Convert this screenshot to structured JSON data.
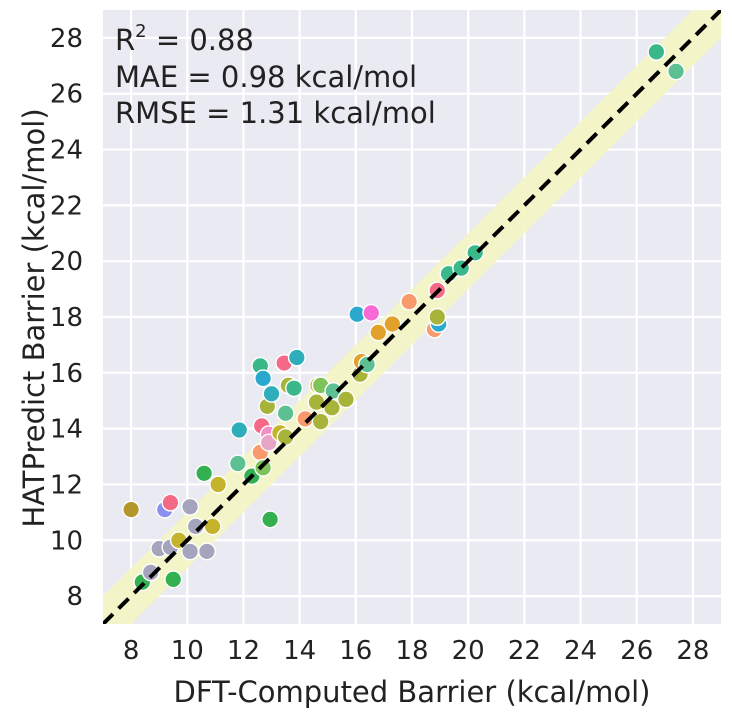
{
  "chart_data": {
    "type": "scatter",
    "xlabel": "DFT-Computed Barrier (kcal/mol)",
    "ylabel": "HATPredict Barrier (kcal/mol)",
    "xlim": [
      7,
      29
    ],
    "ylim": [
      7,
      29
    ],
    "x_ticks": [
      8,
      10,
      12,
      14,
      16,
      18,
      20,
      22,
      24,
      26,
      28
    ],
    "y_ticks": [
      8,
      10,
      12,
      14,
      16,
      18,
      20,
      22,
      24,
      26,
      28
    ],
    "grid": true,
    "background_color": "#eaeaf2",
    "parity_line": true,
    "error_band": 1,
    "band_color": "#f4f5c2",
    "stats": {
      "r2_label": "R",
      "r2_sup": "2",
      "r2_value": " = 0.88",
      "mae": "MAE = 0.98 kcal/mol",
      "rmse": "RMSE = 1.31 kcal/mol"
    },
    "points": [
      {
        "x": 8.0,
        "y": 11.1,
        "color": "#b5962c"
      },
      {
        "x": 8.4,
        "y": 8.5,
        "color": "#33b04f"
      },
      {
        "x": 8.7,
        "y": 8.85,
        "color": "#a4a4bc"
      },
      {
        "x": 9.0,
        "y": 9.7,
        "color": "#a4a4bc"
      },
      {
        "x": 9.2,
        "y": 11.1,
        "color": "#8b8ff0"
      },
      {
        "x": 9.4,
        "y": 11.35,
        "color": "#f46a86"
      },
      {
        "x": 9.4,
        "y": 9.75,
        "color": "#a4a4bc"
      },
      {
        "x": 9.5,
        "y": 8.6,
        "color": "#33b04f"
      },
      {
        "x": 9.7,
        "y": 10.0,
        "color": "#c4b42c"
      },
      {
        "x": 10.1,
        "y": 11.2,
        "color": "#a4a4bc"
      },
      {
        "x": 10.1,
        "y": 9.6,
        "color": "#a4a4bc"
      },
      {
        "x": 10.3,
        "y": 10.5,
        "color": "#a4a4bc"
      },
      {
        "x": 10.6,
        "y": 12.4,
        "color": "#33b04f"
      },
      {
        "x": 10.7,
        "y": 9.6,
        "color": "#a4a4bc"
      },
      {
        "x": 10.9,
        "y": 10.5,
        "color": "#c4b42c"
      },
      {
        "x": 11.1,
        "y": 12.0,
        "color": "#c4b42c"
      },
      {
        "x": 11.8,
        "y": 12.75,
        "color": "#5cc092"
      },
      {
        "x": 11.85,
        "y": 13.95,
        "color": "#2fadbb"
      },
      {
        "x": 12.3,
        "y": 12.3,
        "color": "#33b04f"
      },
      {
        "x": 12.6,
        "y": 16.25,
        "color": "#3bb88a"
      },
      {
        "x": 12.6,
        "y": 13.15,
        "color": "#f89a6c"
      },
      {
        "x": 12.65,
        "y": 14.1,
        "color": "#f46a86"
      },
      {
        "x": 12.7,
        "y": 15.8,
        "color": "#2aa9cf"
      },
      {
        "x": 12.7,
        "y": 12.6,
        "color": "#7ec35a"
      },
      {
        "x": 12.85,
        "y": 14.8,
        "color": "#a8b33a"
      },
      {
        "x": 12.9,
        "y": 13.8,
        "color": "#f38fc7"
      },
      {
        "x": 12.9,
        "y": 13.5,
        "color": "#e7a4c6"
      },
      {
        "x": 12.95,
        "y": 10.75,
        "color": "#33b04f"
      },
      {
        "x": 13.0,
        "y": 15.25,
        "color": "#2fadbb"
      },
      {
        "x": 13.3,
        "y": 13.85,
        "color": "#c4b42c"
      },
      {
        "x": 13.45,
        "y": 16.35,
        "color": "#f46a86"
      },
      {
        "x": 13.5,
        "y": 14.55,
        "color": "#5cc092"
      },
      {
        "x": 13.5,
        "y": 13.7,
        "color": "#a8b33a"
      },
      {
        "x": 13.6,
        "y": 15.55,
        "color": "#a8b33a"
      },
      {
        "x": 13.8,
        "y": 15.45,
        "color": "#3bb88a"
      },
      {
        "x": 13.9,
        "y": 16.55,
        "color": "#2fadbb"
      },
      {
        "x": 14.2,
        "y": 14.35,
        "color": "#f89a6c"
      },
      {
        "x": 14.6,
        "y": 14.95,
        "color": "#a8b33a"
      },
      {
        "x": 14.65,
        "y": 15.55,
        "color": "#d4b82e"
      },
      {
        "x": 14.75,
        "y": 14.25,
        "color": "#a8b33a"
      },
      {
        "x": 14.75,
        "y": 15.55,
        "color": "#7ec35a"
      },
      {
        "x": 15.15,
        "y": 14.75,
        "color": "#a8b33a"
      },
      {
        "x": 15.2,
        "y": 15.35,
        "color": "#5cc092"
      },
      {
        "x": 15.65,
        "y": 15.05,
        "color": "#a8b33a"
      },
      {
        "x": 16.05,
        "y": 18.1,
        "color": "#2aa9cf"
      },
      {
        "x": 16.15,
        "y": 15.95,
        "color": "#a8b33a"
      },
      {
        "x": 16.2,
        "y": 16.4,
        "color": "#e1a12a"
      },
      {
        "x": 16.4,
        "y": 16.3,
        "color": "#5cc092"
      },
      {
        "x": 16.55,
        "y": 18.15,
        "color": "#f76ad5"
      },
      {
        "x": 16.8,
        "y": 17.45,
        "color": "#e1a12a"
      },
      {
        "x": 17.3,
        "y": 17.75,
        "color": "#e1a12a"
      },
      {
        "x": 17.9,
        "y": 18.55,
        "color": "#f89a6c"
      },
      {
        "x": 18.8,
        "y": 17.55,
        "color": "#f89a6c"
      },
      {
        "x": 18.95,
        "y": 17.75,
        "color": "#2aa9cf"
      },
      {
        "x": 18.9,
        "y": 18.0,
        "color": "#a8b33a"
      },
      {
        "x": 18.9,
        "y": 18.95,
        "color": "#f46a86"
      },
      {
        "x": 19.3,
        "y": 19.55,
        "color": "#3bb88a"
      },
      {
        "x": 19.75,
        "y": 19.75,
        "color": "#3bb88a"
      },
      {
        "x": 20.25,
        "y": 20.3,
        "color": "#3bb88a"
      },
      {
        "x": 26.7,
        "y": 27.5,
        "color": "#3bb88a"
      },
      {
        "x": 27.4,
        "y": 26.8,
        "color": "#5cc092"
      }
    ]
  }
}
